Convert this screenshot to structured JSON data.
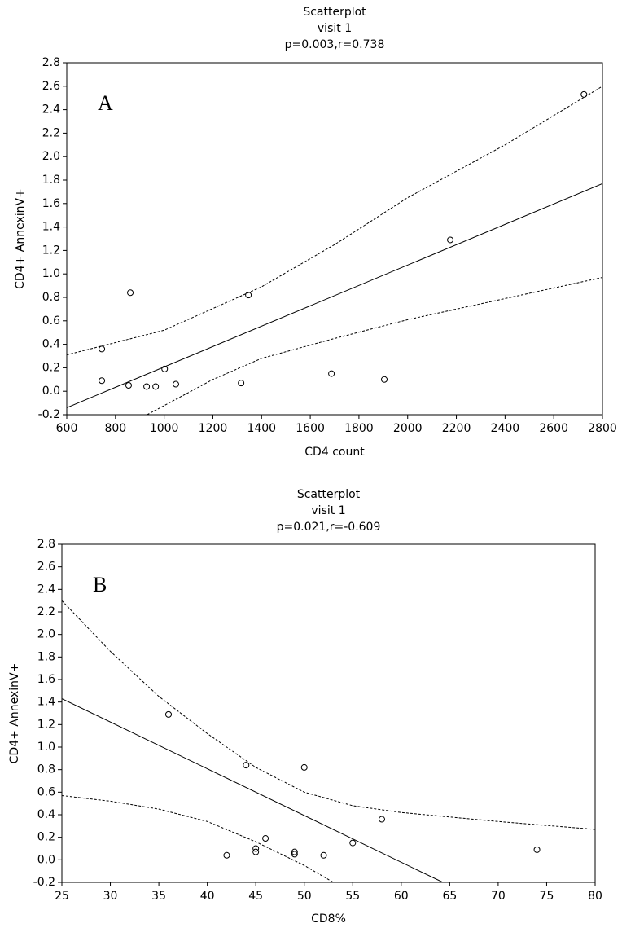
{
  "chart_data": [
    {
      "type": "scatter",
      "title": "Scatterplot",
      "subtitle": "visit 1",
      "annotation": "p=0.003,r=0.738",
      "panel_label": "A",
      "x_label": "CD4 count",
      "y_label": "CD4+ AnnexinV+",
      "x": [
        744,
        744,
        861,
        854,
        928,
        965,
        1002,
        1048,
        1316,
        1346,
        1687,
        1904,
        2175,
        2724
      ],
      "values": [
        0.36,
        0.09,
        0.84,
        0.05,
        0.04,
        0.04,
        0.19,
        0.06,
        0.07,
        0.82,
        0.15,
        0.1,
        1.29,
        2.53
      ],
      "lines": [
        {
          "style": "solid",
          "x": [
            600,
            2800
          ],
          "values": [
            -0.14,
            1.77
          ]
        },
        {
          "style": "dashed",
          "x": [
            600,
            1000,
            1400,
            1700,
            2000,
            2400,
            2800
          ],
          "values": [
            0.31,
            0.52,
            0.89,
            1.25,
            1.65,
            2.1,
            2.6
          ]
        },
        {
          "style": "dashed",
          "x": [
            930,
            1200,
            1400,
            1700,
            2000,
            2400,
            2800
          ],
          "values": [
            -0.2,
            0.1,
            0.28,
            0.45,
            0.61,
            0.79,
            0.97
          ]
        }
      ],
      "xlim": [
        600,
        2800
      ],
      "xticks": [
        600,
        800,
        1000,
        1200,
        1400,
        1600,
        1800,
        2000,
        2200,
        2400,
        2600,
        2800
      ],
      "ylim": [
        -0.2,
        2.8
      ],
      "yticks": [
        -0.2,
        {
          "value": 0,
          "label": "0.0"
        },
        0.2,
        0.4,
        0.6,
        0.8,
        {
          "value": 1,
          "label": "1.0"
        },
        1.2,
        1.4,
        1.6,
        1.8,
        {
          "value": 2,
          "label": "2.0"
        },
        2.2,
        2.4,
        2.6,
        2.8
      ]
    },
    {
      "type": "scatter",
      "title": "Scatterplot",
      "subtitle": "visit 1",
      "annotation": "p=0.021,r=-0.609",
      "panel_label": "B",
      "x_label": "CD8%",
      "y_label": "CD4+ AnnexinV+",
      "x": [
        36,
        44,
        50,
        58,
        46,
        45,
        45,
        42,
        49,
        49,
        52,
        55,
        74
      ],
      "values": [
        1.29,
        0.84,
        0.82,
        0.36,
        0.19,
        0.1,
        0.07,
        0.04,
        0.07,
        0.05,
        0.04,
        0.15,
        0.09
      ],
      "lines": [
        {
          "style": "solid",
          "x": [
            25,
            64.3
          ],
          "values": [
            1.43,
            -0.2
          ]
        },
        {
          "style": "dashed",
          "x": [
            25,
            30,
            35,
            40,
            45,
            50,
            55,
            60,
            70,
            80
          ],
          "values": [
            2.3,
            1.85,
            1.45,
            1.12,
            0.82,
            0.6,
            0.48,
            0.42,
            0.34,
            0.27
          ]
        },
        {
          "style": "dashed",
          "x": [
            25,
            30,
            35,
            40,
            45,
            50,
            53
          ],
          "values": [
            0.57,
            0.52,
            0.45,
            0.34,
            0.16,
            -0.05,
            -0.2
          ]
        }
      ],
      "xlim": [
        25,
        80
      ],
      "xticks": [
        25,
        30,
        35,
        40,
        45,
        50,
        55,
        60,
        65,
        70,
        75,
        80
      ],
      "ylim": [
        -0.2,
        2.8
      ],
      "yticks": [
        -0.2,
        {
          "value": 0,
          "label": "0.0"
        },
        0.2,
        0.4,
        0.6,
        0.8,
        {
          "value": 1,
          "label": "1.0"
        },
        1.2,
        1.4,
        1.6,
        1.8,
        {
          "value": 2,
          "label": "2.0"
        },
        2.2,
        2.4,
        2.6,
        2.8
      ]
    }
  ]
}
